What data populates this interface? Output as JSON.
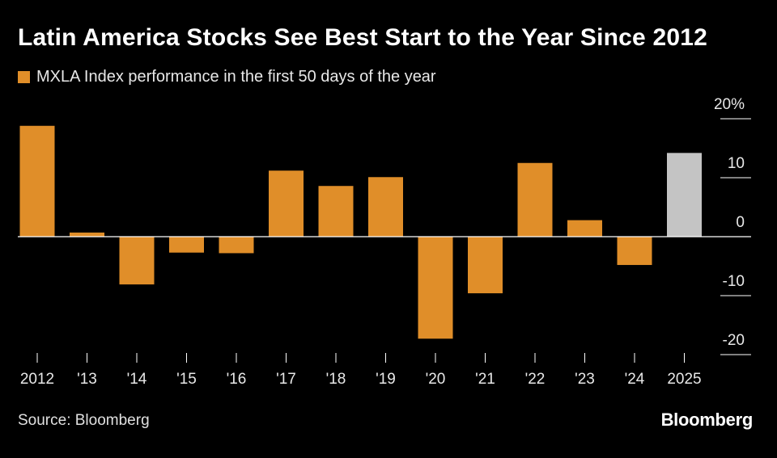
{
  "header": {
    "title": "Latin America Stocks See Best Start to the Year Since 2012"
  },
  "legend": {
    "label": "MXLA Index performance in the first 50 days of the year"
  },
  "footer": {
    "source": "Source: Bloomberg",
    "brand": "Bloomberg"
  },
  "colors": {
    "background": "#000000",
    "bar": "#e08e29",
    "highlight": "#c4c4c4",
    "axis": "#ffffff",
    "text": "#e8e8e8"
  },
  "chart_data": {
    "type": "bar",
    "title": "Latin America Stocks See Best Start to the Year Since 2012",
    "series": [
      {
        "name": "MXLA Index performance in the first 50 days of the year",
        "values": [
          18.8,
          0.7,
          -8.1,
          -2.7,
          -2.8,
          11.2,
          8.6,
          10.1,
          -17.3,
          -9.6,
          12.5,
          2.8,
          -4.8,
          14.2
        ]
      }
    ],
    "categories": [
      "2012",
      "'13",
      "'14",
      "'15",
      "'16",
      "'17",
      "'18",
      "'19",
      "'20",
      "'21",
      "'22",
      "'23",
      "'24",
      "2025"
    ],
    "highlight_category": "2025",
    "ylim": [
      -20,
      20
    ],
    "yticks": [
      20,
      10,
      0,
      -10,
      -20
    ],
    "ytick_labels": [
      "20%",
      "10",
      "0",
      "-10",
      "-20"
    ],
    "xlabel": "",
    "ylabel": "",
    "grid": false,
    "legend_position": "top-left"
  }
}
